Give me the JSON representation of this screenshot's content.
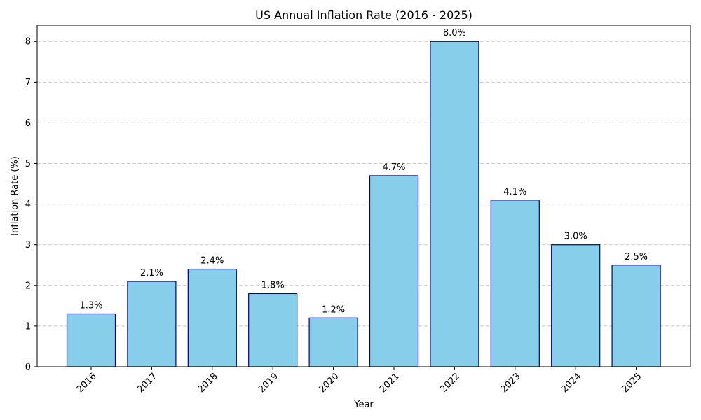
{
  "chart_data": {
    "type": "bar",
    "title": "US Annual Inflation Rate (2016 - 2025)",
    "xlabel": "Year",
    "ylabel": "Inflation Rate (%)",
    "categories": [
      "2016",
      "2017",
      "2018",
      "2019",
      "2020",
      "2021",
      "2022",
      "2023",
      "2024",
      "2025"
    ],
    "values": [
      1.3,
      2.1,
      2.4,
      1.8,
      1.2,
      4.7,
      8.0,
      4.1,
      3.0,
      2.5
    ],
    "data_labels": [
      "1.3%",
      "2.1%",
      "2.4%",
      "1.8%",
      "1.2%",
      "4.7%",
      "8.0%",
      "4.1%",
      "3.0%",
      "2.5%"
    ],
    "yticks": [
      "0",
      "1",
      "2",
      "3",
      "4",
      "5",
      "6",
      "7",
      "8"
    ],
    "ylim": [
      0,
      8.4
    ],
    "grid": "y-dashed",
    "bar_fill": "#87ceeb",
    "bar_edge": "#000080",
    "grid_color": "#c8c8c8"
  }
}
